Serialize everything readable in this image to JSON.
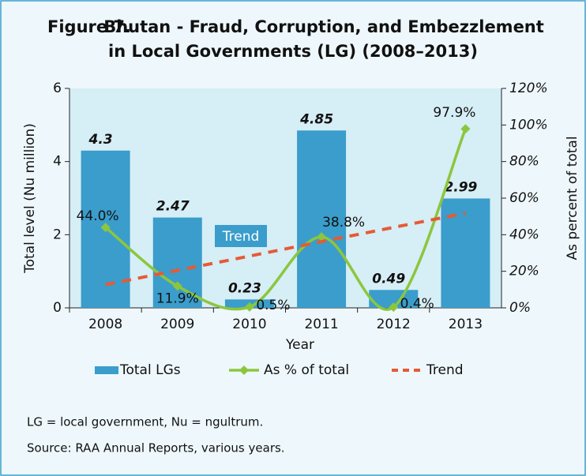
{
  "figure_label": "Figure 7.",
  "chart_data": {
    "type": "combo",
    "title": [
      "Bhutan - Fraud, Corruption, and Embezzlement",
      "in Local Governments (LG) (2008–2013)"
    ],
    "categories": [
      "2008",
      "2009",
      "2010",
      "2011",
      "2012",
      "2013"
    ],
    "xlabel": "Year",
    "ylabel": "Total level (Nu million)",
    "y2label": "As percent of total",
    "ylim": [
      0,
      6
    ],
    "yticks": [
      0,
      2,
      4,
      6
    ],
    "y2lim": [
      0,
      120
    ],
    "y2ticks": [
      {
        "value": 0,
        "label": "0%"
      },
      {
        "value": 20,
        "label": "20%"
      },
      {
        "value": 40,
        "label": "40%"
      },
      {
        "value": 60,
        "label": "60%"
      },
      {
        "value": 80,
        "label": "80%"
      },
      {
        "value": 100,
        "label": "100%"
      },
      {
        "value": 120,
        "label": "120%"
      }
    ],
    "series": [
      {
        "name": "Total LGs",
        "type": "bar",
        "color": "#3a9dcb",
        "values": [
          4.3,
          2.47,
          0.23,
          4.85,
          0.49,
          2.99
        ]
      },
      {
        "name": "As % of total",
        "type": "line",
        "axis": "y2",
        "color": "#8cc63e",
        "values": [
          44.0,
          11.9,
          0.5,
          38.8,
          0.4,
          97.9
        ],
        "value_labels": [
          "44.0%",
          "11.9%",
          "0.5%",
          "38.8%",
          "0.4%",
          "97.9%"
        ]
      },
      {
        "name": "Trend",
        "type": "trend",
        "axis": "y2",
        "color": "#e65a35",
        "values": [
          12.7,
          20.5,
          28.3,
          36.2,
          44.0,
          51.8
        ]
      }
    ],
    "annotations": [
      {
        "text": "Trend"
      }
    ],
    "legend": "bottom"
  },
  "notes": [
    "LG = local government, Nu = ngultrum.",
    "Source: RAA Annual Reports, various years."
  ]
}
